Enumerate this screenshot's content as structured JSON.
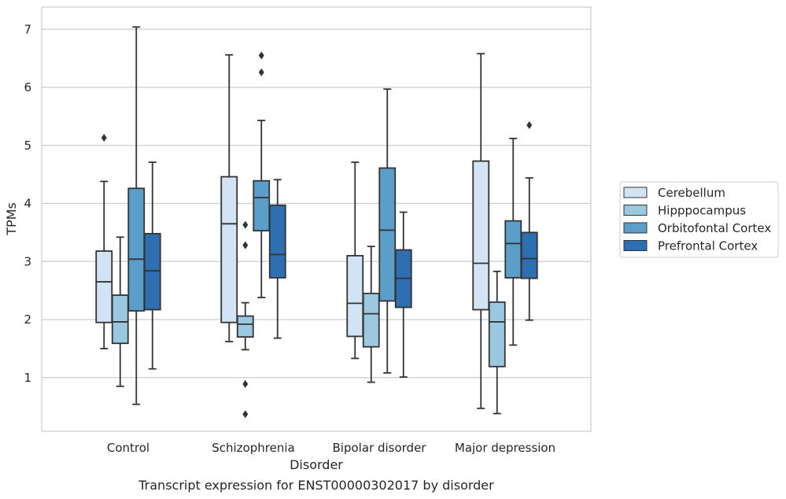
{
  "chart_data": {
    "type": "box",
    "title": "",
    "caption": "Transcript expression for ENST00000302017 by disorder",
    "xlabel": "Disorder",
    "ylabel": "TPMs",
    "ylim": [
      0,
      7.4
    ],
    "yticks": [
      1,
      2,
      3,
      4,
      5,
      6,
      7
    ],
    "grid": "horizontal",
    "legend_position": "right",
    "categories": [
      "Control",
      "Schizophrenia",
      "Bipolar disorder",
      "Major depression"
    ],
    "series": [
      {
        "name": "Cerebellum",
        "color": "#d2e3f3",
        "boxes": [
          {
            "min": 1.5,
            "q1": 1.95,
            "median": 2.65,
            "q3": 3.18,
            "max": 4.38,
            "outliers": [
              5.13
            ]
          },
          {
            "min": 1.62,
            "q1": 1.95,
            "median": 3.65,
            "q3": 4.46,
            "max": 6.56,
            "outliers": []
          },
          {
            "min": 1.33,
            "q1": 1.71,
            "median": 2.28,
            "q3": 3.1,
            "max": 4.71,
            "outliers": []
          },
          {
            "min": 0.47,
            "q1": 2.17,
            "median": 2.97,
            "q3": 4.73,
            "max": 6.58,
            "outliers": []
          }
        ]
      },
      {
        "name": "Hipppocampus",
        "color": "#9ac8e0",
        "boxes": [
          {
            "min": 0.85,
            "q1": 1.59,
            "median": 1.96,
            "q3": 2.42,
            "max": 3.42,
            "outliers": []
          },
          {
            "min": 1.48,
            "q1": 1.7,
            "median": 1.92,
            "q3": 2.06,
            "max": 2.29,
            "outliers": [
              3.63,
              3.28,
              0.89,
              0.37
            ]
          },
          {
            "min": 0.92,
            "q1": 1.53,
            "median": 2.1,
            "q3": 2.45,
            "max": 3.26,
            "outliers": []
          },
          {
            "min": 0.38,
            "q1": 1.19,
            "median": 1.96,
            "q3": 2.3,
            "max": 2.83,
            "outliers": []
          }
        ]
      },
      {
        "name": "Orbitofontal Cortex",
        "color": "#5b9ec9",
        "boxes": [
          {
            "min": 0.54,
            "q1": 2.15,
            "median": 3.04,
            "q3": 4.26,
            "max": 7.04,
            "outliers": []
          },
          {
            "min": 2.38,
            "q1": 3.53,
            "median": 4.1,
            "q3": 4.39,
            "max": 5.43,
            "outliers": [
              6.55,
              6.26
            ]
          },
          {
            "min": 1.08,
            "q1": 2.32,
            "median": 3.54,
            "q3": 4.61,
            "max": 5.97,
            "outliers": []
          },
          {
            "min": 1.56,
            "q1": 2.72,
            "median": 3.31,
            "q3": 3.7,
            "max": 5.12,
            "outliers": []
          }
        ]
      },
      {
        "name": "Prefrontal Cortex",
        "color": "#2d6fb0",
        "boxes": [
          {
            "min": 1.15,
            "q1": 2.17,
            "median": 2.84,
            "q3": 3.48,
            "max": 4.71,
            "outliers": []
          },
          {
            "min": 1.68,
            "q1": 2.72,
            "median": 3.12,
            "q3": 3.97,
            "max": 4.41,
            "outliers": []
          },
          {
            "min": 1.01,
            "q1": 2.21,
            "median": 2.71,
            "q3": 3.2,
            "max": 3.85,
            "outliers": []
          },
          {
            "min": 1.99,
            "q1": 2.71,
            "median": 3.05,
            "q3": 3.5,
            "max": 4.44,
            "outliers": [
              5.35
            ]
          }
        ]
      }
    ]
  }
}
